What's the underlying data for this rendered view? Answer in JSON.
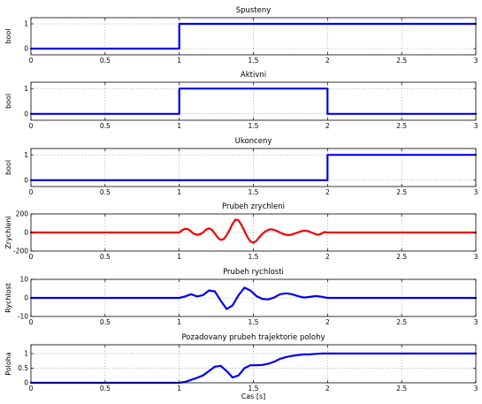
{
  "chart_data": [
    {
      "type": "line",
      "title": "Spusteny",
      "ylabel": "bool",
      "xlabel": "",
      "xlim": [
        0,
        3
      ],
      "ylim": [
        -0.25,
        1.25
      ],
      "xticks": [
        0,
        0.5,
        1,
        1.5,
        2,
        2.5,
        3
      ],
      "yticks": [
        0,
        1
      ],
      "xtick_labels": [
        "0",
        "0.5",
        "1",
        "1.5",
        "2",
        "2.5",
        "3"
      ],
      "grid": true,
      "series": [
        {
          "color": "#0000ee",
          "x": [
            0,
            1,
            1,
            3
          ],
          "y": [
            0,
            0,
            1,
            1
          ]
        }
      ]
    },
    {
      "type": "line",
      "title": "Aktivni",
      "ylabel": "bool",
      "xlabel": "",
      "xlim": [
        0,
        3
      ],
      "ylim": [
        -0.25,
        1.25
      ],
      "xticks": [
        0,
        0.5,
        1,
        1.5,
        2,
        2.5,
        3
      ],
      "yticks": [
        0,
        1
      ],
      "xtick_labels": [
        "0",
        "0.5",
        "1",
        "1.5",
        "2",
        "2.5",
        "3"
      ],
      "grid": true,
      "series": [
        {
          "color": "#0000ee",
          "x": [
            0,
            1,
            1,
            2,
            2,
            3
          ],
          "y": [
            0,
            0,
            1,
            1,
            0,
            0
          ]
        }
      ]
    },
    {
      "type": "line",
      "title": "Ukonceny",
      "ylabel": "bool",
      "xlabel": "",
      "xlim": [
        0,
        3
      ],
      "ylim": [
        -0.25,
        1.25
      ],
      "xticks": [
        0,
        0.5,
        1,
        1.5,
        2,
        2.5,
        3
      ],
      "yticks": [
        0,
        1
      ],
      "xtick_labels": [
        "0",
        "0.5",
        "1",
        "1.5",
        "2",
        "2.5",
        "3"
      ],
      "grid": true,
      "series": [
        {
          "color": "#0000ee",
          "x": [
            0,
            2,
            2,
            3
          ],
          "y": [
            0,
            0,
            1,
            1
          ]
        }
      ]
    },
    {
      "type": "line",
      "title": "Prubeh zrychleni",
      "ylabel": "Zrychleni",
      "xlabel": "",
      "xlim": [
        0,
        3
      ],
      "ylim": [
        -200,
        200
      ],
      "xticks": [
        0,
        0.5,
        1,
        1.5,
        2,
        2.5,
        3
      ],
      "yticks": [
        -200,
        0,
        200
      ],
      "xtick_labels": [
        "0",
        "0.5",
        "1",
        "1.5",
        "2",
        "2.5",
        "3"
      ],
      "grid": true,
      "series": [
        {
          "color": "#ee0000",
          "x": [
            0,
            1,
            1.02,
            1.04,
            1.06,
            1.08,
            1.1,
            1.12,
            1.14,
            1.16,
            1.18,
            1.2,
            1.22,
            1.24,
            1.26,
            1.28,
            1.3,
            1.32,
            1.34,
            1.36,
            1.38,
            1.4,
            1.42,
            1.44,
            1.46,
            1.48,
            1.5,
            1.52,
            1.54,
            1.56,
            1.58,
            1.6,
            1.62,
            1.64,
            1.66,
            1.68,
            1.7,
            1.72,
            1.74,
            1.76,
            1.78,
            1.8,
            1.82,
            1.84,
            1.86,
            1.88,
            1.9,
            1.92,
            1.94,
            1.96,
            1.98,
            2.0,
            3
          ],
          "y": [
            0,
            0,
            25,
            40,
            35,
            10,
            -15,
            -25,
            -20,
            0,
            30,
            45,
            30,
            -10,
            -55,
            -80,
            -70,
            -30,
            30,
            95,
            140,
            130,
            80,
            15,
            -50,
            -95,
            -110,
            -90,
            -50,
            -15,
            10,
            30,
            35,
            28,
            15,
            0,
            -15,
            -25,
            -28,
            -22,
            -10,
            0,
            12,
            20,
            18,
            8,
            -5,
            -18,
            -25,
            -10,
            5,
            0,
            0
          ]
        }
      ]
    },
    {
      "type": "line",
      "title": "Prubeh rychlosti",
      "ylabel": "Rychlost",
      "xlabel": "",
      "xlim": [
        0,
        3
      ],
      "ylim": [
        -10,
        10
      ],
      "xticks": [
        0,
        0.5,
        1,
        1.5,
        2,
        2.5,
        3
      ],
      "yticks": [
        -10,
        0,
        10
      ],
      "xtick_labels": [
        "0",
        "0.5",
        "1",
        "1.5",
        "2",
        "2.5",
        "3"
      ],
      "grid": true,
      "series": [
        {
          "color": "#0000ee",
          "x": [
            0,
            1,
            1.04,
            1.08,
            1.12,
            1.16,
            1.2,
            1.24,
            1.28,
            1.32,
            1.36,
            1.4,
            1.44,
            1.48,
            1.52,
            1.56,
            1.6,
            1.64,
            1.68,
            1.72,
            1.76,
            1.8,
            1.84,
            1.88,
            1.92,
            1.96,
            2.0,
            3
          ],
          "y": [
            0,
            0,
            0.8,
            2.0,
            0.8,
            1.5,
            4.0,
            3.5,
            -1.5,
            -6.0,
            -4.0,
            1.5,
            5.5,
            4.0,
            1.0,
            -0.5,
            -0.8,
            0.2,
            2.0,
            2.5,
            2.0,
            1.0,
            0.2,
            0.5,
            1.0,
            0.6,
            0,
            0
          ]
        }
      ]
    },
    {
      "type": "line",
      "title": "Pozadovany prubeh trajektorie polohy",
      "ylabel": "Poloha",
      "xlabel": "Cas [s]",
      "xlim": [
        0,
        3
      ],
      "ylim": [
        0,
        1.3
      ],
      "xticks": [
        0,
        0.5,
        1,
        1.5,
        2,
        2.5,
        3
      ],
      "yticks": [
        0,
        0.5,
        1
      ],
      "xtick_labels": [
        "0",
        "0.5",
        "1",
        "1.5",
        "2",
        "2.5",
        "3"
      ],
      "grid": true,
      "series": [
        {
          "color": "#0000ee",
          "x": [
            0,
            1,
            1.04,
            1.08,
            1.12,
            1.16,
            1.2,
            1.24,
            1.28,
            1.32,
            1.36,
            1.4,
            1.44,
            1.48,
            1.52,
            1.56,
            1.6,
            1.64,
            1.68,
            1.72,
            1.76,
            1.8,
            1.84,
            1.88,
            1.92,
            1.96,
            2.0,
            3
          ],
          "y": [
            0,
            0,
            0.03,
            0.1,
            0.17,
            0.25,
            0.4,
            0.55,
            0.58,
            0.4,
            0.18,
            0.25,
            0.5,
            0.6,
            0.6,
            0.61,
            0.65,
            0.72,
            0.82,
            0.88,
            0.92,
            0.95,
            0.97,
            0.97,
            0.99,
            1.0,
            1.0,
            1.0
          ]
        }
      ]
    }
  ]
}
